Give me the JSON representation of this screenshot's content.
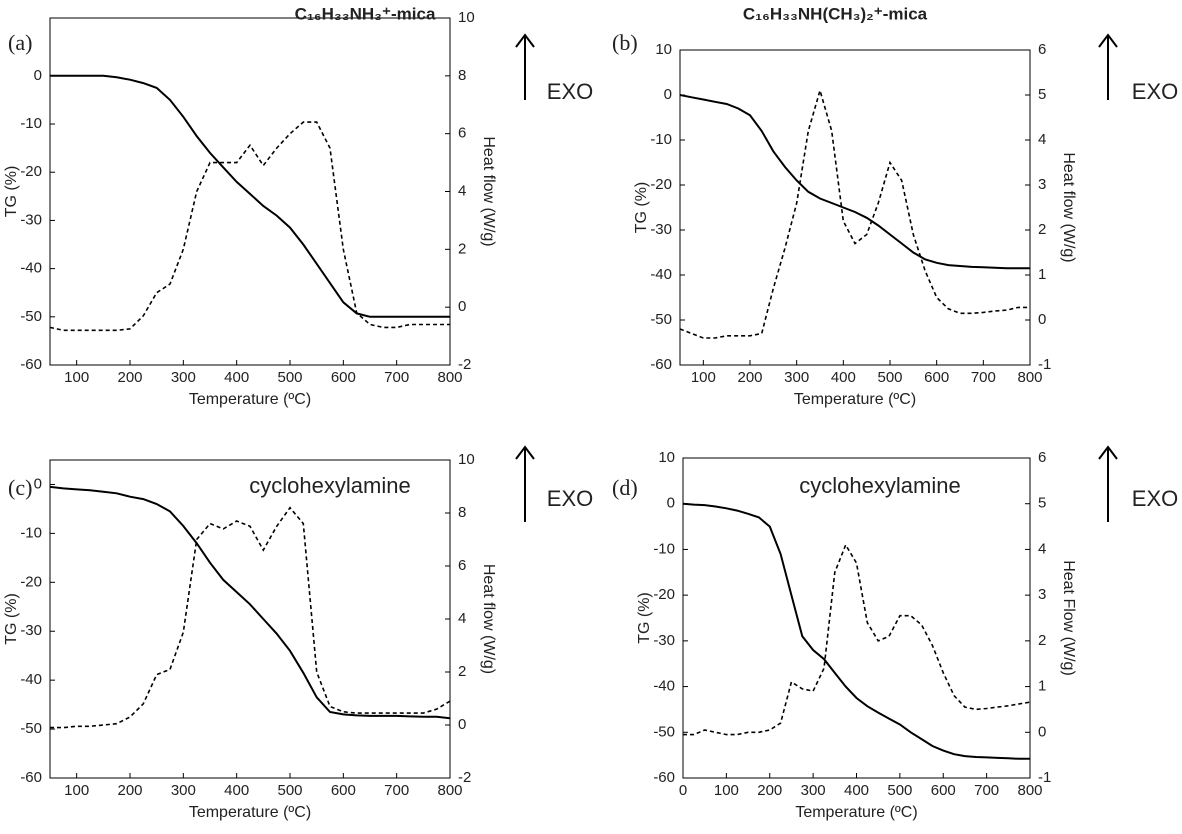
{
  "chart_data": [
    {
      "type": "line",
      "panel_label": "(a)",
      "title": "C₁₆H₃₃NH₃⁺-mica",
      "exo_label": "EXO",
      "xlabel": "Temperature (ºC)",
      "ylabel": "TG (%)",
      "y2label": "Heat flow (W/g)",
      "x": [
        50,
        75,
        100,
        125,
        150,
        175,
        200,
        225,
        250,
        275,
        300,
        325,
        350,
        375,
        400,
        425,
        450,
        475,
        500,
        525,
        550,
        575,
        600,
        625,
        650,
        675,
        700,
        725,
        750,
        775,
        800
      ],
      "xlim": [
        50,
        800
      ],
      "xticks": [
        100,
        200,
        300,
        400,
        500,
        600,
        700,
        800
      ],
      "ylim": [
        -60,
        12
      ],
      "yticks": [
        -60,
        -50,
        -40,
        -30,
        -20,
        -10,
        0
      ],
      "y2lim": [
        -2,
        10
      ],
      "y2ticks": [
        -2,
        0,
        2,
        4,
        6,
        8,
        10
      ],
      "series": [
        {
          "color": "#000000",
          "style": "solid",
          "values": [
            0,
            0,
            0,
            0,
            0,
            -0.3,
            -0.8,
            -1.5,
            -2.5,
            -5,
            -8.5,
            -12.5,
            -16,
            -19,
            -22,
            -24.5,
            -27,
            -29,
            -31.5,
            -35,
            -39,
            -43,
            -47,
            -49.3,
            -50,
            -50,
            -50,
            -50,
            -50,
            -50,
            -50
          ]
        },
        {
          "color": "#000000",
          "style": "dashed",
          "axis": "y2",
          "values": [
            -0.7,
            -0.8,
            -0.8,
            -0.8,
            -0.8,
            -0.8,
            -0.75,
            -0.3,
            0.5,
            0.8,
            2,
            4,
            5,
            5,
            5,
            5.6,
            4.9,
            5.5,
            6,
            6.4,
            6.4,
            5.5,
            2,
            -0.2,
            -0.6,
            -0.7,
            -0.7,
            -0.6,
            -0.6,
            -0.6,
            -0.6
          ]
        }
      ]
    },
    {
      "type": "line",
      "panel_label": "(b)",
      "title": "C₁₆H₃₃NH(CH₃)₂⁺-mica",
      "exo_label": "EXO",
      "xlabel": "Temperature (ºC)",
      "ylabel": "TG (%)",
      "y2label": "Heat flow (W/g)",
      "x": [
        50,
        75,
        100,
        125,
        150,
        175,
        200,
        225,
        250,
        275,
        300,
        325,
        350,
        375,
        400,
        425,
        450,
        475,
        500,
        525,
        550,
        575,
        600,
        625,
        650,
        675,
        700,
        725,
        750,
        775,
        800
      ],
      "xlim": [
        50,
        800
      ],
      "xticks": [
        100,
        200,
        300,
        400,
        500,
        600,
        700,
        800
      ],
      "ylim": [
        -60,
        10
      ],
      "yticks": [
        -60,
        -50,
        -40,
        -30,
        -20,
        -10,
        0,
        10
      ],
      "y2lim": [
        -1,
        6
      ],
      "y2ticks": [
        -1,
        0,
        1,
        2,
        3,
        4,
        5,
        6
      ],
      "series": [
        {
          "color": "#000000",
          "style": "solid",
          "values": [
            0,
            -0.5,
            -1,
            -1.5,
            -2,
            -3,
            -4.5,
            -8,
            -12.5,
            -16,
            -19,
            -21.5,
            -23,
            -24,
            -25,
            -26,
            -27.3,
            -29,
            -31,
            -33,
            -35,
            -36.5,
            -37.3,
            -37.8,
            -38,
            -38.2,
            -38.3,
            -38.4,
            -38.5,
            -38.5,
            -38.5
          ]
        },
        {
          "color": "#000000",
          "style": "dashed",
          "axis": "y2",
          "values": [
            -0.2,
            -0.3,
            -0.4,
            -0.4,
            -0.35,
            -0.35,
            -0.35,
            -0.3,
            0.7,
            1.6,
            2.6,
            4.2,
            5.1,
            4.2,
            2.2,
            1.7,
            1.9,
            2.6,
            3.5,
            3.1,
            1.9,
            1.1,
            0.5,
            0.25,
            0.15,
            0.15,
            0.17,
            0.2,
            0.22,
            0.28,
            0.28
          ]
        }
      ]
    },
    {
      "type": "line",
      "panel_label": "(c)",
      "title": "cyclohexylamine",
      "exo_label": "EXO",
      "xlabel": "Temperature (ºC)",
      "ylabel": "TG (%)",
      "y2label": "Heat flow (W/g)",
      "x": [
        50,
        75,
        100,
        125,
        150,
        175,
        200,
        225,
        250,
        275,
        300,
        325,
        350,
        375,
        400,
        425,
        450,
        475,
        500,
        525,
        550,
        575,
        600,
        625,
        650,
        675,
        700,
        725,
        750,
        775,
        800
      ],
      "xlim": [
        50,
        800
      ],
      "xticks": [
        100,
        200,
        300,
        400,
        500,
        600,
        700,
        800
      ],
      "ylim": [
        -60,
        5
      ],
      "yticks": [
        -60,
        -50,
        -40,
        -30,
        -20,
        -10,
        0
      ],
      "y2lim": [
        -2,
        10
      ],
      "y2ticks": [
        -2,
        0,
        2,
        4,
        6,
        8,
        10
      ],
      "series": [
        {
          "color": "#000000",
          "style": "solid",
          "values": [
            -0.5,
            -0.8,
            -1,
            -1.2,
            -1.5,
            -1.8,
            -2.5,
            -3,
            -4,
            -5.5,
            -8.5,
            -12,
            -16,
            -19.5,
            -22,
            -24.5,
            -27.5,
            -30.5,
            -34,
            -38.5,
            -43.5,
            -46.5,
            -47,
            -47.2,
            -47.3,
            -47.3,
            -47.3,
            -47.4,
            -47.5,
            -47.5,
            -47.8
          ]
        },
        {
          "color": "#000000",
          "style": "dashed",
          "axis": "y2",
          "values": [
            -0.1,
            -0.1,
            -0.05,
            -0.05,
            0,
            0.05,
            0.3,
            0.8,
            1.9,
            2.1,
            3.5,
            7,
            7.6,
            7.4,
            7.7,
            7.5,
            6.6,
            7.5,
            8.2,
            7.6,
            2,
            0.7,
            0.5,
            0.45,
            0.45,
            0.45,
            0.45,
            0.45,
            0.45,
            0.6,
            0.9
          ]
        }
      ]
    },
    {
      "type": "line",
      "panel_label": "(d)",
      "title": "cyclohexylamine",
      "exo_label": "EXO",
      "xlabel": "Temperature (ºC)",
      "ylabel": "TG (%)",
      "y2label": "Heat Flow (W/g)",
      "x": [
        0,
        25,
        50,
        75,
        100,
        125,
        150,
        175,
        200,
        225,
        250,
        275,
        300,
        325,
        350,
        375,
        400,
        425,
        450,
        475,
        500,
        525,
        550,
        575,
        600,
        625,
        650,
        675,
        700,
        725,
        750,
        775,
        800
      ],
      "xlim": [
        0,
        800
      ],
      "xticks": [
        0,
        100,
        200,
        300,
        400,
        500,
        600,
        700,
        800
      ],
      "ylim": [
        -60,
        10
      ],
      "yticks": [
        -60,
        -50,
        -40,
        -30,
        -20,
        -10,
        0,
        10
      ],
      "y2lim": [
        -1,
        6
      ],
      "y2ticks": [
        -1,
        0,
        1,
        2,
        3,
        4,
        5,
        6
      ],
      "series": [
        {
          "color": "#000000",
          "style": "solid",
          "values": [
            0,
            -0.2,
            -0.3,
            -0.6,
            -1,
            -1.5,
            -2.2,
            -3,
            -5,
            -11,
            -20,
            -29,
            -32,
            -34,
            -37,
            -40,
            -42.5,
            -44.3,
            -45.7,
            -47,
            -48.3,
            -50,
            -51.5,
            -53,
            -54,
            -54.8,
            -55.2,
            -55.4,
            -55.5,
            -55.6,
            -55.7,
            -55.8,
            -55.8
          ]
        },
        {
          "color": "#000000",
          "style": "dashed",
          "axis": "y2",
          "values": [
            -0.05,
            -0.05,
            0.05,
            0,
            -0.05,
            -0.05,
            0,
            0,
            0.05,
            0.2,
            1.1,
            0.95,
            0.9,
            1.4,
            3.5,
            4.1,
            3.7,
            2.4,
            2,
            2.1,
            2.55,
            2.55,
            2.35,
            1.9,
            1.3,
            0.8,
            0.55,
            0.5,
            0.52,
            0.55,
            0.58,
            0.62,
            0.66
          ]
        }
      ]
    }
  ]
}
